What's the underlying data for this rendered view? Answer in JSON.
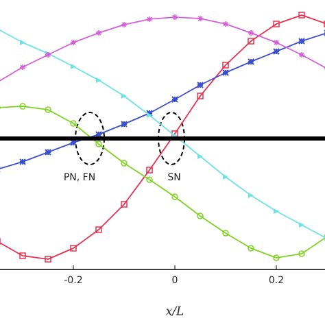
{
  "chart_data": {
    "type": "line",
    "xlabel": "x/L",
    "x": [
      -0.35,
      -0.3,
      -0.25,
      -0.2,
      -0.15,
      -0.1,
      -0.05,
      0,
      0.05,
      0.1,
      0.15,
      0.2,
      0.25,
      0.3
    ],
    "xlim": [
      -0.3446,
      0.2959
    ],
    "xticks": [
      -0.2,
      0,
      0.2
    ],
    "ylim": [
      -191,
      202
    ],
    "series": [
      {
        "color": "#e8304f",
        "marker": "square",
        "values": [
          -150,
          -171,
          -176,
          -160,
          -133,
          -96,
          -46,
          7,
          62,
          107,
          142,
          167,
          180,
          167
        ]
      },
      {
        "color": "#7ed321",
        "marker": "circle",
        "values": [
          45,
          47,
          42,
          22,
          -8,
          -36,
          -60,
          -85,
          -113,
          -138,
          -160,
          -174,
          -168,
          -143
        ]
      },
      {
        "color": "#3b4fd0",
        "marker": "star",
        "values": [
          -45,
          -34,
          -20,
          -6,
          6,
          21,
          37,
          57,
          78,
          96,
          112,
          127,
          142,
          154
        ]
      },
      {
        "color": "#6fe3e3",
        "marker": "triangle",
        "values": [
          160,
          140,
          124,
          105,
          85,
          62,
          34,
          4,
          -26,
          -56,
          -83,
          -106,
          -126,
          -146
        ]
      },
      {
        "color": "#d35fd8",
        "marker": "cross",
        "values": [
          82,
          104,
          122,
          140,
          154,
          166,
          174,
          177,
          175,
          167,
          154,
          140,
          122,
          102
        ]
      },
      {
        "color": "#000000",
        "marker": "none",
        "width": 6,
        "values": [
          0,
          0,
          0,
          0,
          0,
          0,
          0,
          0,
          0,
          0,
          0,
          0,
          0,
          0
        ]
      }
    ],
    "annotations": [
      "PN, FN",
      "SN"
    ]
  }
}
